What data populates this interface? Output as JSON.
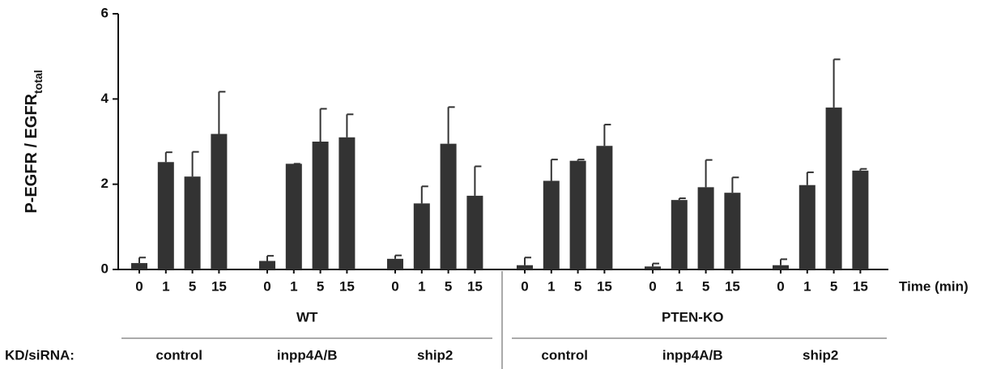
{
  "chart_data": {
    "type": "bar",
    "y_label": "P-EGFR / EGFR",
    "y_label_subscript": "total",
    "x_label": "Time (min)",
    "row_label": "KD/siRNA:",
    "categories": [
      "0",
      "1",
      "5",
      "15",
      "0",
      "1",
      "5",
      "15",
      "0",
      "1",
      "5",
      "15",
      "0",
      "1",
      "5",
      "15",
      "0",
      "1",
      "5",
      "15",
      "0",
      "1",
      "5",
      "15"
    ],
    "groups": [
      {
        "name": "WT",
        "subgroups": [
          "control",
          "inpp4A/B",
          "ship2"
        ]
      },
      {
        "name": "PTEN-KO",
        "subgroups": [
          "control",
          "inpp4A/B",
          "ship2"
        ]
      }
    ],
    "color": "#333333",
    "values": [
      0.15,
      2.52,
      2.18,
      3.18,
      0.2,
      2.48,
      3.0,
      3.1,
      0.25,
      1.55,
      2.95,
      1.73,
      0.1,
      2.08,
      2.55,
      2.9,
      0.07,
      1.63,
      1.93,
      1.8,
      0.1,
      1.98,
      3.8,
      2.32
    ],
    "errors": [
      0.13,
      0.23,
      0.58,
      0.99,
      0.12,
      0.0,
      0.77,
      0.54,
      0.08,
      0.4,
      0.86,
      0.69,
      0.18,
      0.5,
      0.03,
      0.5,
      0.07,
      0.04,
      0.64,
      0.36,
      0.14,
      0.3,
      1.13,
      0.04
    ],
    "ylim": [
      0,
      6
    ],
    "yticks": [
      0,
      2,
      4,
      6
    ]
  }
}
